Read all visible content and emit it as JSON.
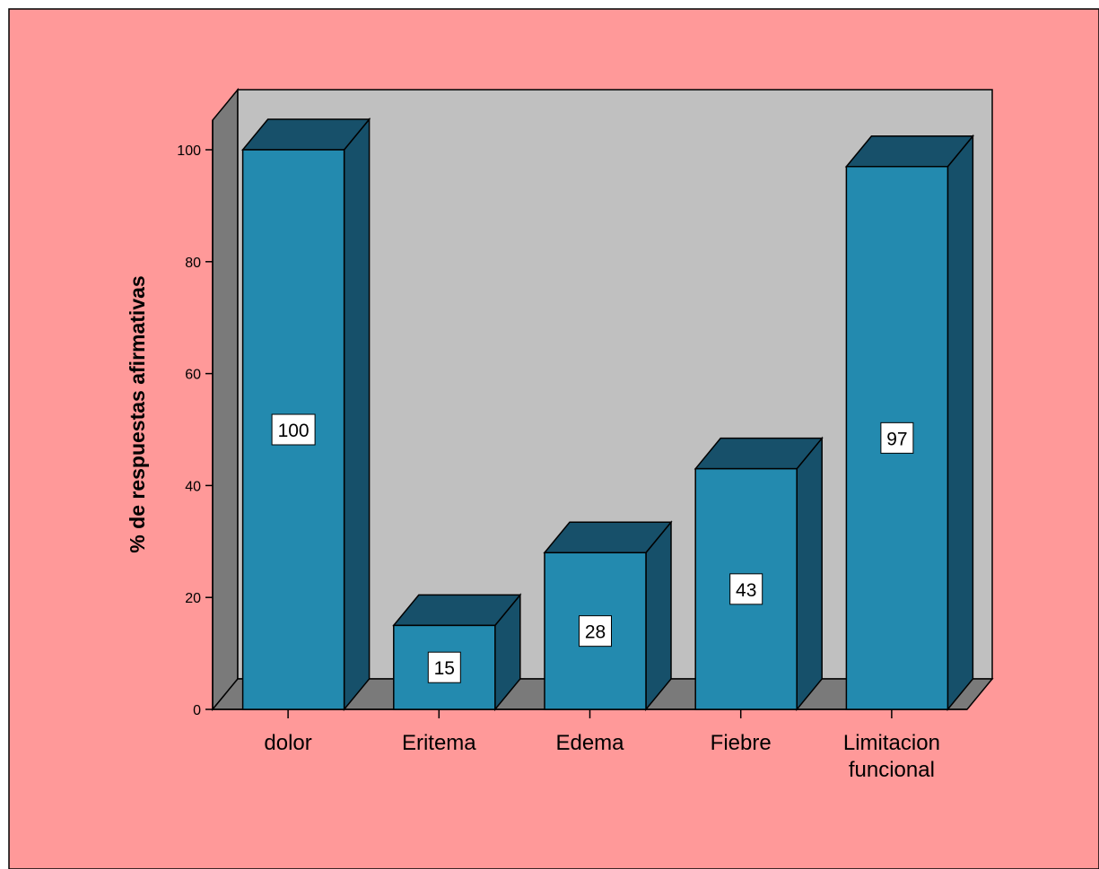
{
  "colors": {
    "background": "#ff9999",
    "wall": "#c0c0c0",
    "wall_side": "#7a7a7a",
    "bar_front": "#238aaf",
    "bar_top": "#17506a",
    "bar_side": "#16506a"
  },
  "chart_data": {
    "type": "bar",
    "style": "3d",
    "categories": [
      "dolor",
      "Eritema",
      "Edema",
      "Fiebre",
      "Limitacion funcional"
    ],
    "values": [
      100,
      15,
      28,
      43,
      97
    ],
    "data_labels": [
      "100",
      "15",
      "28",
      "43",
      "97"
    ],
    "ylabel": "% de respuestas afirmativas",
    "xlabel": "",
    "ylim": [
      0,
      100
    ],
    "yticks": [
      0,
      20,
      40,
      60,
      80,
      100
    ],
    "grid": false,
    "legend": "none"
  }
}
